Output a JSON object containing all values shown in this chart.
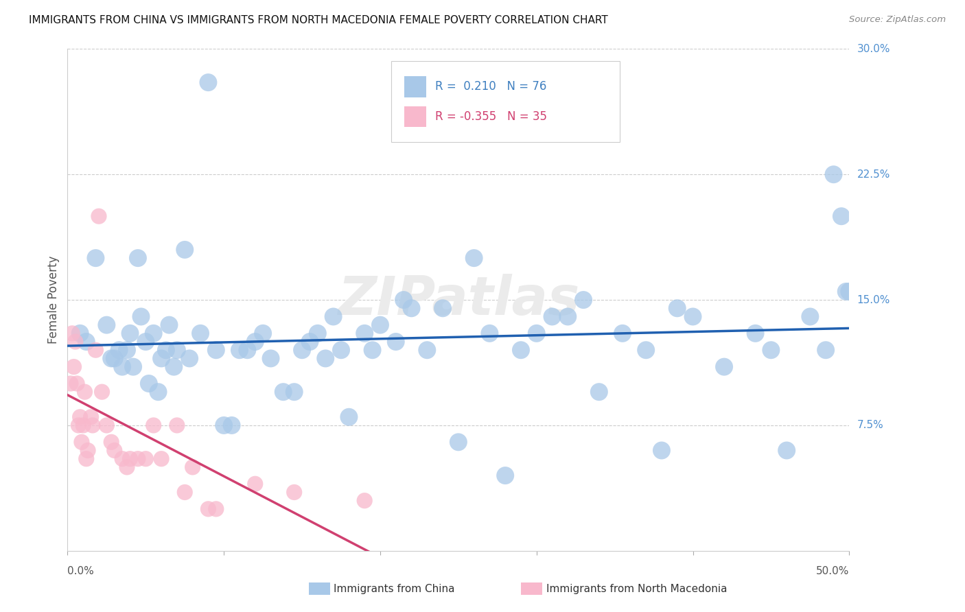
{
  "title": "IMMIGRANTS FROM CHINA VS IMMIGRANTS FROM NORTH MACEDONIA FEMALE POVERTY CORRELATION CHART",
  "source": "Source: ZipAtlas.com",
  "ylabel": "Female Poverty",
  "xlim": [
    0,
    0.5
  ],
  "ylim": [
    0,
    0.3
  ],
  "ytick_vals": [
    0.075,
    0.15,
    0.225,
    0.3
  ],
  "yticklabels": [
    "7.5%",
    "15.0%",
    "22.5%",
    "30.0%"
  ],
  "china_R": 0.21,
  "china_N": 76,
  "macedonia_R": -0.355,
  "macedonia_N": 35,
  "china_color": "#a8c8e8",
  "china_line_color": "#2060b0",
  "china_label_color": "#4080c0",
  "macedonia_color": "#f8b8cc",
  "macedonia_line_color": "#d04070",
  "ytick_color": "#5090d0",
  "background_color": "#ffffff",
  "watermark": "ZIPatlas",
  "china_x": [
    0.008,
    0.012,
    0.018,
    0.025,
    0.028,
    0.03,
    0.033,
    0.035,
    0.038,
    0.04,
    0.042,
    0.045,
    0.047,
    0.05,
    0.052,
    0.055,
    0.058,
    0.06,
    0.063,
    0.065,
    0.068,
    0.07,
    0.075,
    0.078,
    0.085,
    0.09,
    0.095,
    0.1,
    0.105,
    0.11,
    0.115,
    0.12,
    0.125,
    0.13,
    0.138,
    0.145,
    0.15,
    0.155,
    0.16,
    0.165,
    0.17,
    0.175,
    0.18,
    0.19,
    0.195,
    0.2,
    0.21,
    0.215,
    0.22,
    0.23,
    0.24,
    0.25,
    0.26,
    0.27,
    0.28,
    0.29,
    0.3,
    0.31,
    0.32,
    0.33,
    0.34,
    0.355,
    0.37,
    0.38,
    0.39,
    0.4,
    0.42,
    0.44,
    0.45,
    0.46,
    0.475,
    0.485,
    0.49,
    0.495,
    0.498,
    0.5
  ],
  "china_y": [
    0.13,
    0.125,
    0.175,
    0.135,
    0.115,
    0.115,
    0.12,
    0.11,
    0.12,
    0.13,
    0.11,
    0.175,
    0.14,
    0.125,
    0.1,
    0.13,
    0.095,
    0.115,
    0.12,
    0.135,
    0.11,
    0.12,
    0.18,
    0.115,
    0.13,
    0.28,
    0.12,
    0.075,
    0.075,
    0.12,
    0.12,
    0.125,
    0.13,
    0.115,
    0.095,
    0.095,
    0.12,
    0.125,
    0.13,
    0.115,
    0.14,
    0.12,
    0.08,
    0.13,
    0.12,
    0.135,
    0.125,
    0.15,
    0.145,
    0.12,
    0.145,
    0.065,
    0.175,
    0.13,
    0.045,
    0.12,
    0.13,
    0.14,
    0.14,
    0.15,
    0.095,
    0.13,
    0.12,
    0.06,
    0.145,
    0.14,
    0.11,
    0.13,
    0.12,
    0.06,
    0.14,
    0.12,
    0.225,
    0.2,
    0.155,
    0.155
  ],
  "macedonia_x": [
    0.002,
    0.003,
    0.004,
    0.005,
    0.006,
    0.007,
    0.008,
    0.009,
    0.01,
    0.011,
    0.012,
    0.013,
    0.015,
    0.016,
    0.018,
    0.02,
    0.022,
    0.025,
    0.028,
    0.03,
    0.035,
    0.038,
    0.04,
    0.045,
    0.05,
    0.055,
    0.06,
    0.07,
    0.075,
    0.08,
    0.09,
    0.095,
    0.12,
    0.145,
    0.19
  ],
  "macedonia_y": [
    0.1,
    0.13,
    0.11,
    0.125,
    0.1,
    0.075,
    0.08,
    0.065,
    0.075,
    0.095,
    0.055,
    0.06,
    0.08,
    0.075,
    0.12,
    0.2,
    0.095,
    0.075,
    0.065,
    0.06,
    0.055,
    0.05,
    0.055,
    0.055,
    0.055,
    0.075,
    0.055,
    0.075,
    0.035,
    0.05,
    0.025,
    0.025,
    0.04,
    0.035,
    0.03
  ]
}
